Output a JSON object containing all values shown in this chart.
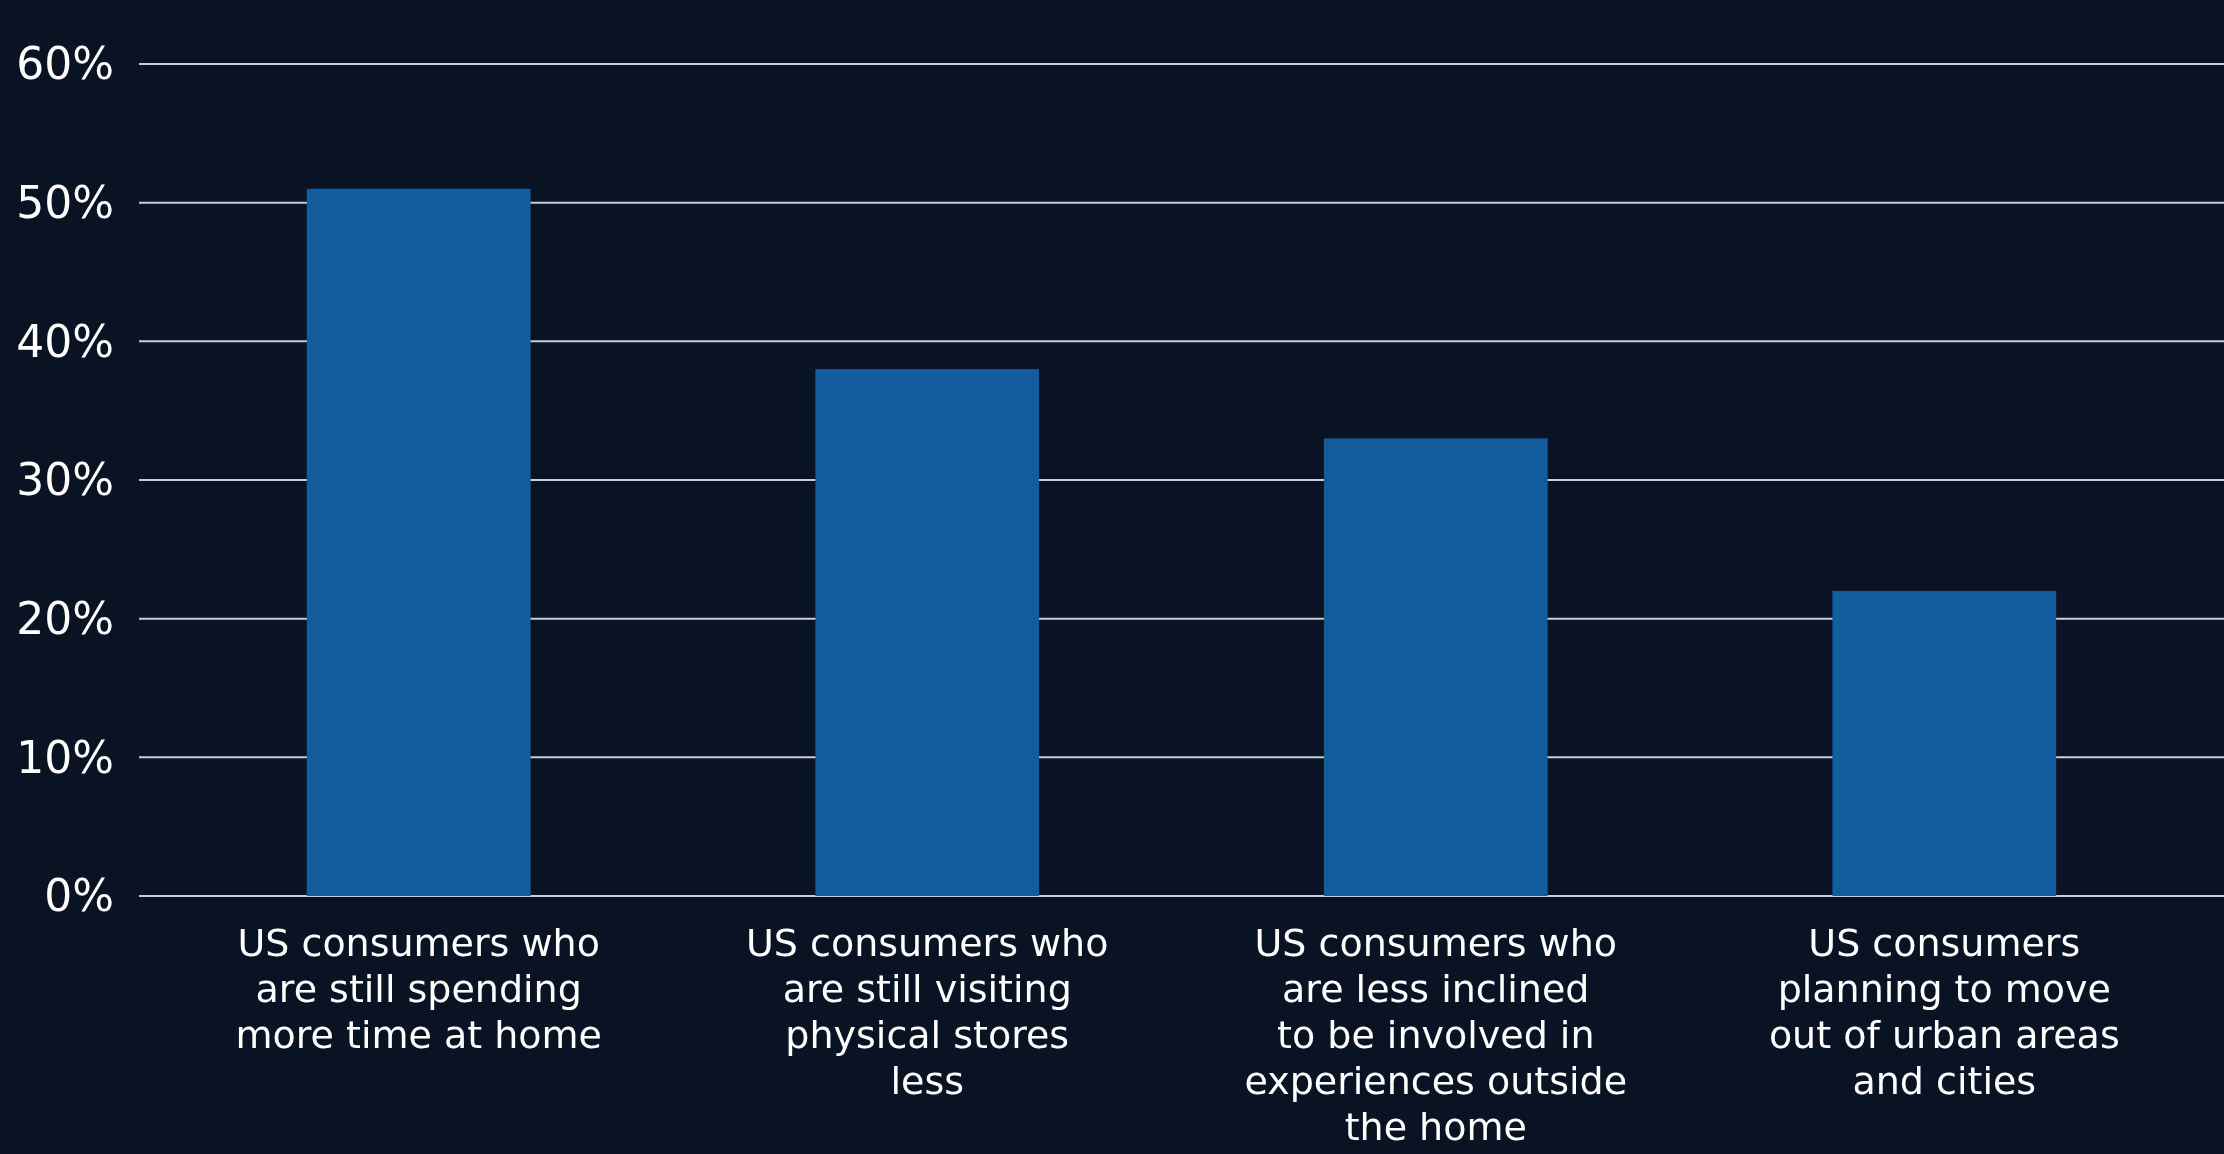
{
  "chart_data": {
    "type": "bar",
    "categories": [
      "US consumers who are still spending more time at home",
      "US consumers who are still visiting physical stores less",
      "US consumers who are less inclined to be involved in experiences outside the home",
      "US consumers planning to move out of urban areas and cities"
    ],
    "values": [
      51,
      38,
      33,
      22
    ],
    "color": "#135c9e",
    "ylim": [
      0,
      60
    ],
    "yticks": [
      {
        "value": 0,
        "label": "0%"
      },
      {
        "value": 10,
        "label": "10%"
      },
      {
        "value": 20,
        "label": "20%"
      },
      {
        "value": 30,
        "label": "30%"
      },
      {
        "value": 40,
        "label": "40%"
      },
      {
        "value": 50,
        "label": "50%"
      },
      {
        "value": 60,
        "label": "60%"
      }
    ],
    "grid": "y"
  }
}
